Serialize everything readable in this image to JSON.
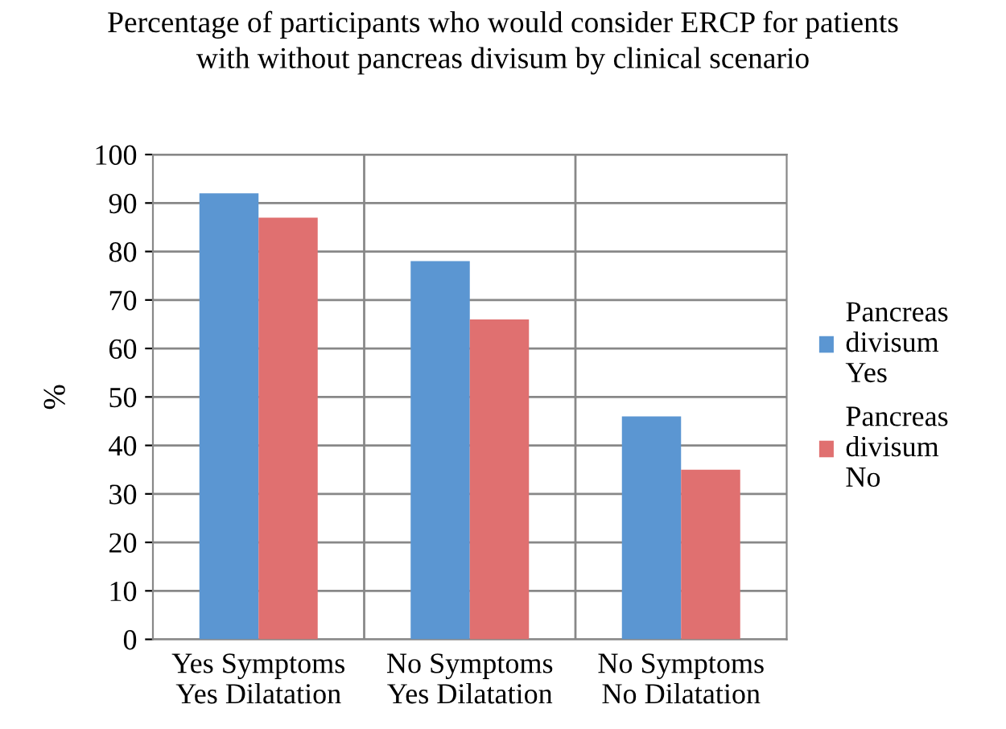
{
  "chart_data": {
    "type": "bar",
    "title": "Percentage of participants who would consider ERCP for patients\nwith without pancreas divisum by clinical scenario",
    "ylabel": "%",
    "categories": [
      "Yes Symptoms\nYes Dilatation",
      "No Symptoms\nYes Dilatation",
      "No Symptoms\nNo Dilatation"
    ],
    "series": [
      {
        "name": "Pancreas\ndivisum\nYes",
        "color": "#5b96d2",
        "values": [
          92,
          78,
          46
        ]
      },
      {
        "name": "Pancreas\ndivisum\nNo",
        "color": "#e07070",
        "values": [
          87,
          66,
          35
        ]
      }
    ],
    "ylim": [
      0,
      100
    ],
    "yticks": [
      0,
      10,
      20,
      30,
      40,
      50,
      60,
      70,
      80,
      90,
      100
    ],
    "grid": true,
    "legend": "right"
  }
}
